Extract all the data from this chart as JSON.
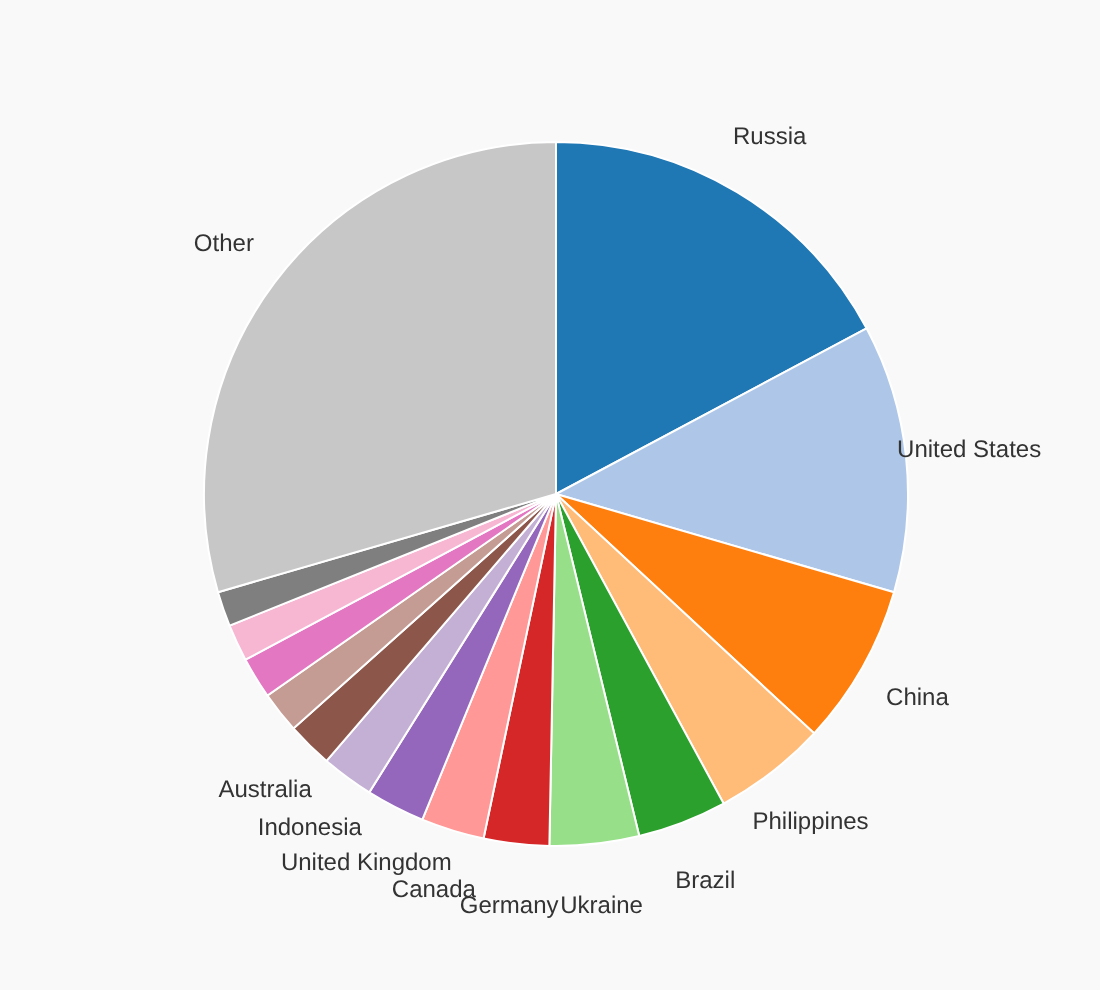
{
  "chart_data": {
    "type": "pie",
    "categories": [
      "Russia",
      "United States",
      "China",
      "Philippines",
      "Brazil",
      "Ukraine",
      "Germany",
      "Canada",
      "United Kingdom",
      "Indonesia",
      "Australia",
      null,
      null,
      null,
      null,
      "Other"
    ],
    "values": [
      17.2,
      12.3,
      7.4,
      5.2,
      4.1,
      4.1,
      3.0,
      2.9,
      2.7,
      2.4,
      2.1,
      1.9,
      1.9,
      1.7,
      1.6,
      29.5
    ],
    "colors": [
      "#1f77b4",
      "#aec7e8",
      "#ff7f0e",
      "#ffbb78",
      "#2ca02c",
      "#98df8a",
      "#d62728",
      "#ff9896",
      "#9467bd",
      "#c5b0d5",
      "#8c564b",
      "#c49c94",
      "#e377c2",
      "#f7b6d2",
      "#7f7f7f",
      "#c7c7c7"
    ]
  }
}
